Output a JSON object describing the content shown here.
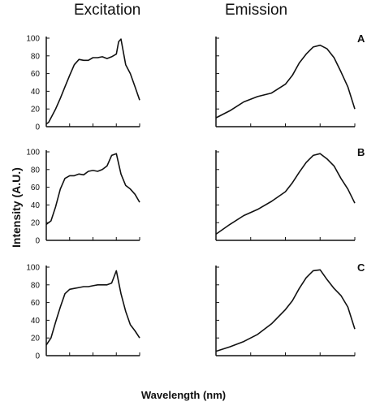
{
  "titles": {
    "left": "Excitation",
    "right": "Emission"
  },
  "axis_labels": {
    "y": "Intensity (A.U.)",
    "x": "Wavelength (nm)"
  },
  "chart_data": [
    {
      "type": "line",
      "panel": "A",
      "column": "Excitation",
      "ylim": [
        0,
        100
      ],
      "yticks": [
        0,
        20,
        40,
        60,
        80,
        100
      ],
      "xlim": [
        0,
        20
      ],
      "series": [
        {
          "x": [
            0,
            0.5,
            1,
            2,
            3,
            4,
            5,
            6,
            7,
            8,
            9,
            10,
            11,
            12,
            13,
            14,
            15,
            15.5,
            16,
            17,
            18,
            19,
            20
          ],
          "values": [
            3,
            5,
            10,
            20,
            32,
            45,
            58,
            70,
            76,
            75,
            75,
            78,
            78,
            79,
            77,
            79,
            82,
            96,
            99,
            70,
            60,
            45,
            30
          ]
        }
      ]
    },
    {
      "type": "line",
      "panel": "A",
      "column": "Emission",
      "ylim": [
        0,
        100
      ],
      "xlim": [
        0,
        20
      ],
      "series": [
        {
          "x": [
            0,
            2,
            4,
            6,
            8,
            10,
            11,
            12,
            13,
            14,
            15,
            16,
            17,
            18,
            19,
            20
          ],
          "values": [
            10,
            18,
            28,
            34,
            38,
            48,
            58,
            72,
            82,
            90,
            92,
            88,
            78,
            62,
            45,
            20
          ]
        }
      ]
    },
    {
      "type": "line",
      "panel": "B",
      "column": "Excitation",
      "ylim": [
        0,
        100
      ],
      "yticks": [
        0,
        20,
        40,
        60,
        80,
        100
      ],
      "xlim": [
        0,
        20
      ],
      "series": [
        {
          "x": [
            0,
            1,
            2,
            3,
            4,
            5,
            6,
            7,
            8,
            9,
            10,
            11,
            12,
            13,
            14,
            15,
            16,
            17,
            18,
            19,
            20
          ],
          "values": [
            18,
            22,
            38,
            58,
            70,
            73,
            73,
            75,
            74,
            78,
            79,
            78,
            80,
            84,
            96,
            98,
            75,
            62,
            58,
            52,
            43
          ]
        }
      ]
    },
    {
      "type": "line",
      "panel": "B",
      "column": "Emission",
      "ylim": [
        0,
        100
      ],
      "xlim": [
        0,
        20
      ],
      "series": [
        {
          "x": [
            0,
            2,
            4,
            6,
            8,
            10,
            11,
            12,
            13,
            14,
            15,
            16,
            17,
            18,
            19,
            20
          ],
          "values": [
            7,
            18,
            28,
            35,
            44,
            55,
            65,
            77,
            88,
            96,
            98,
            92,
            84,
            70,
            58,
            42
          ]
        }
      ]
    },
    {
      "type": "line",
      "panel": "C",
      "column": "Excitation",
      "ylim": [
        0,
        100
      ],
      "yticks": [
        0,
        20,
        40,
        60,
        80,
        100
      ],
      "xlim": [
        0,
        20
      ],
      "series": [
        {
          "x": [
            0,
            1,
            2,
            3,
            4,
            5,
            6,
            7,
            8,
            9,
            10,
            11,
            12,
            13,
            14,
            15,
            16,
            17,
            18,
            19,
            20
          ],
          "values": [
            12,
            20,
            38,
            55,
            70,
            75,
            76,
            77,
            78,
            78,
            79,
            80,
            80,
            80,
            82,
            96,
            70,
            50,
            35,
            28,
            20
          ]
        }
      ]
    },
    {
      "type": "line",
      "panel": "C",
      "column": "Emission",
      "ylim": [
        0,
        100
      ],
      "xlim": [
        0,
        20
      ],
      "series": [
        {
          "x": [
            0,
            2,
            4,
            6,
            8,
            10,
            11,
            12,
            13,
            14,
            15,
            16,
            17,
            18,
            19,
            20
          ],
          "values": [
            5,
            10,
            16,
            24,
            36,
            52,
            62,
            76,
            88,
            96,
            97,
            86,
            76,
            68,
            55,
            30
          ]
        }
      ]
    }
  ]
}
